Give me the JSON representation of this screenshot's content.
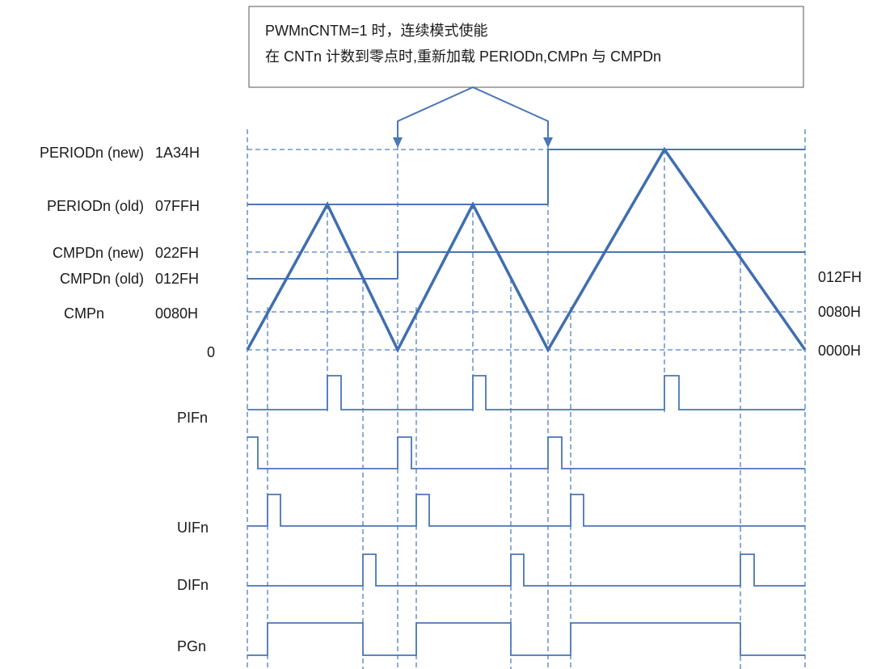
{
  "note": {
    "line1": "PWMnCNTM=1 时，连续模式使能",
    "line2": "在 CNTn 计数到零点时,重新加载 PERIODn,CMPn 与 CMPDn"
  },
  "left_labels": {
    "period_new": "PERIODn (new)",
    "period_old": "PERIODn (old)",
    "cmpd_new": "CMPDn (new)",
    "cmpd_old": "CMPDn (old)",
    "cmp": "CMPn"
  },
  "left_values": {
    "period_new": "1A34H",
    "period_old": "07FFH",
    "cmpd_new": "022FH",
    "cmpd_old": "012FH",
    "cmp": "0080H",
    "zero": "0"
  },
  "right_values": {
    "cmpd": "012FH",
    "cmp": "0080H",
    "zero": "0000H"
  },
  "signals": {
    "pifn": "PIFn",
    "uifn": "UIFn",
    "difn": "DIFn",
    "pgn": "PGn"
  },
  "colors": {
    "wave": "#3f6eb0",
    "guide": "#4f7fc0",
    "text": "#1a1a1a"
  }
}
